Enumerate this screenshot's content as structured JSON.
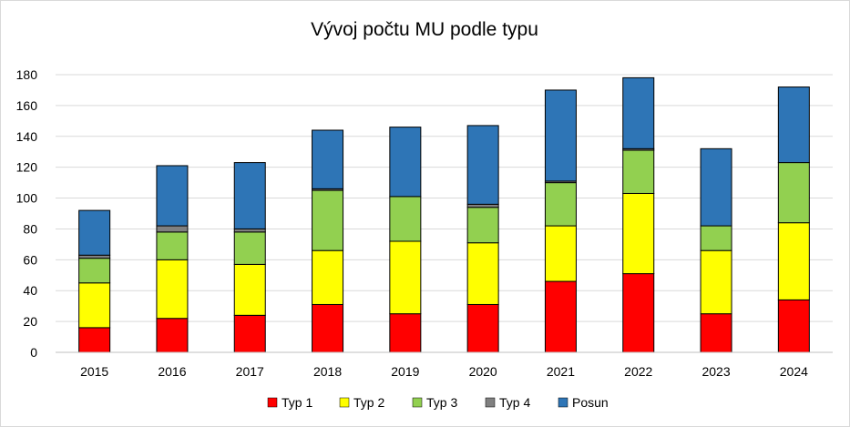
{
  "chart_data": {
    "type": "bar",
    "stacked": true,
    "title": "Vývoj počtu MU podle typu",
    "xlabel": "",
    "ylabel": "",
    "ylim": [
      0,
      180
    ],
    "yticks": [
      0,
      20,
      40,
      60,
      80,
      100,
      120,
      140,
      160,
      180
    ],
    "grid": true,
    "legend_position": "bottom",
    "categories": [
      "2015",
      "2016",
      "2017",
      "2018",
      "2019",
      "2020",
      "2021",
      "2022",
      "2023",
      "2024"
    ],
    "series": [
      {
        "name": "Typ 1",
        "color": "#ff0000",
        "values": [
          16,
          22,
          24,
          31,
          25,
          31,
          46,
          51,
          25,
          34
        ]
      },
      {
        "name": "Typ 2",
        "color": "#ffff00",
        "values": [
          29,
          38,
          33,
          35,
          47,
          40,
          36,
          52,
          41,
          50
        ]
      },
      {
        "name": "Typ 3",
        "color": "#92d050",
        "values": [
          16,
          18,
          21,
          39,
          29,
          23,
          28,
          28,
          16,
          39
        ]
      },
      {
        "name": "Typ 4",
        "color": "#808080",
        "values": [
          2,
          4,
          2,
          1,
          0,
          2,
          1,
          1,
          0,
          0
        ]
      },
      {
        "name": "Posun",
        "color": "#2e75b6",
        "values": [
          29,
          39,
          43,
          38,
          45,
          51,
          59,
          46,
          50,
          49
        ]
      }
    ]
  }
}
